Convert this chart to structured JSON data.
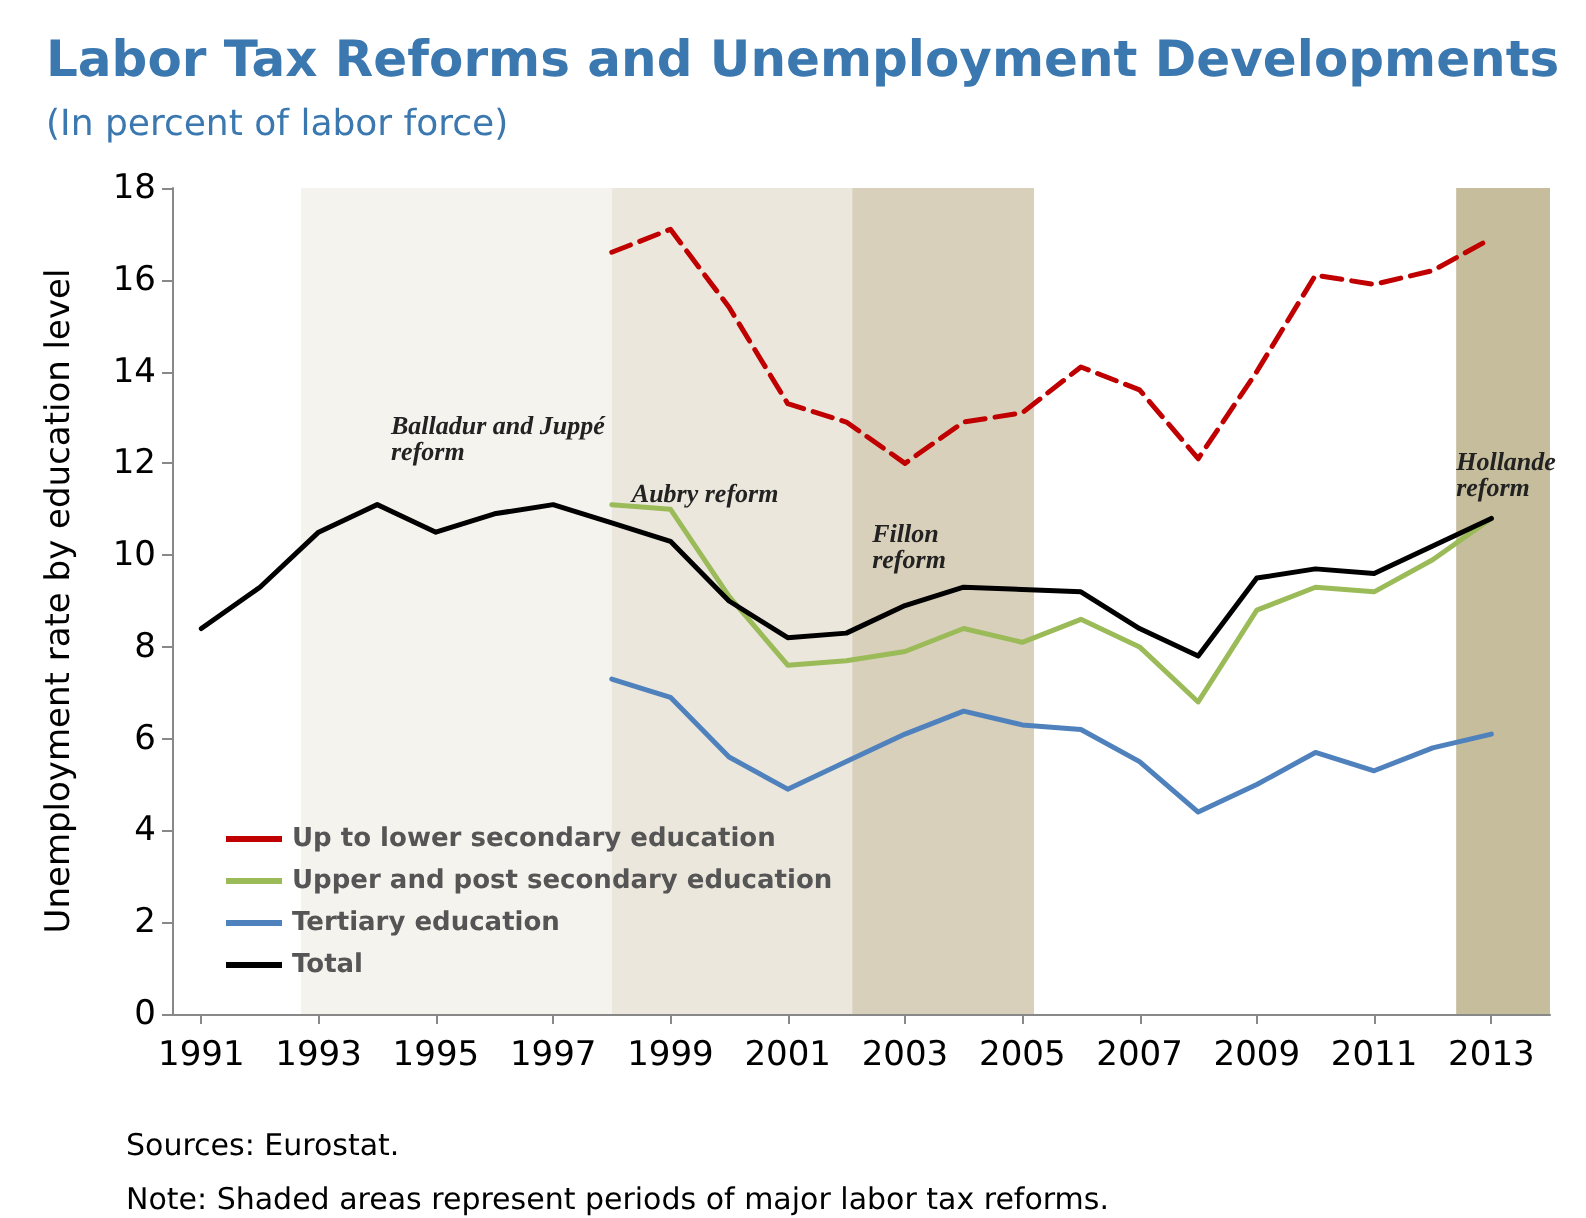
{
  "chart_data": {
    "type": "line",
    "title": "Labor Tax Reforms and Unemployment Developments",
    "subtitle": "(In percent of labor force)",
    "ylabel": "Unemployment rate by education level",
    "x": [
      1991,
      1992,
      1993,
      1994,
      1995,
      1996,
      1997,
      1998,
      1999,
      2000,
      2001,
      2002,
      2003,
      2004,
      2005,
      2006,
      2007,
      2008,
      2009,
      2010,
      2011,
      2012,
      2013
    ],
    "xlim": [
      1990.5,
      2014
    ],
    "xticks": [
      1991,
      1993,
      1995,
      1997,
      1999,
      2001,
      2003,
      2005,
      2007,
      2009,
      2011,
      2013
    ],
    "ylim": [
      0,
      18
    ],
    "yticks": [
      0,
      2,
      4,
      6,
      8,
      10,
      12,
      14,
      16,
      18
    ],
    "series": [
      {
        "name": "Up to lower secondary education",
        "color": "#c00000",
        "line_style": "dashed",
        "values": [
          null,
          null,
          null,
          null,
          null,
          null,
          null,
          16.6,
          17.1,
          15.4,
          13.3,
          12.9,
          12.0,
          12.9,
          13.1,
          14.1,
          13.6,
          12.1,
          14.0,
          16.1,
          15.9,
          16.2,
          16.9
        ]
      },
      {
        "name": "Upper and post secondary education",
        "color": "#9bbb59",
        "line_style": "solid",
        "values": [
          null,
          null,
          null,
          null,
          null,
          null,
          null,
          11.1,
          11.0,
          9.1,
          7.6,
          7.7,
          7.9,
          8.4,
          8.1,
          8.6,
          8.0,
          6.8,
          8.8,
          9.3,
          9.2,
          9.9,
          10.8
        ]
      },
      {
        "name": "Tertiary education",
        "color": "#4f81bd",
        "line_style": "solid",
        "values": [
          null,
          null,
          null,
          null,
          null,
          null,
          null,
          7.3,
          6.9,
          5.6,
          4.9,
          5.5,
          6.1,
          6.6,
          6.3,
          6.2,
          5.5,
          4.4,
          5.0,
          5.7,
          5.3,
          5.8,
          6.1
        ]
      },
      {
        "name": "Total",
        "color": "#000000",
        "line_style": "solid",
        "values": [
          8.4,
          9.3,
          10.5,
          11.1,
          10.5,
          10.9,
          11.1,
          10.7,
          10.3,
          9.0,
          8.2,
          8.3,
          8.9,
          9.3,
          9.25,
          9.2,
          8.4,
          7.8,
          9.5,
          9.7,
          9.6,
          10.2,
          10.8
        ]
      }
    ],
    "bands": [
      {
        "axis": "x",
        "from": 1992.7,
        "to": 1998,
        "color": "#f5f3ee",
        "label": "Balladur and Juppé\nreform"
      },
      {
        "axis": "x",
        "from": 1998,
        "to": 2002.1,
        "color": "#ebe7dc",
        "label": "Aubry reform"
      },
      {
        "axis": "x",
        "from": 2002.1,
        "to": 2005.2,
        "color": "#d9d0bb",
        "label": "Fillon\nreform"
      },
      {
        "axis": "x",
        "from": 2012.4,
        "to": 2014,
        "color": "#c6bd9c",
        "label": "Hollande\nreform"
      }
    ],
    "annotations": [
      "Sources: Eurostat.",
      "Note: Shaded areas represent periods of major labor tax reforms."
    ],
    "legend": "bottom left",
    "marker": "none",
    "grid": false
  }
}
